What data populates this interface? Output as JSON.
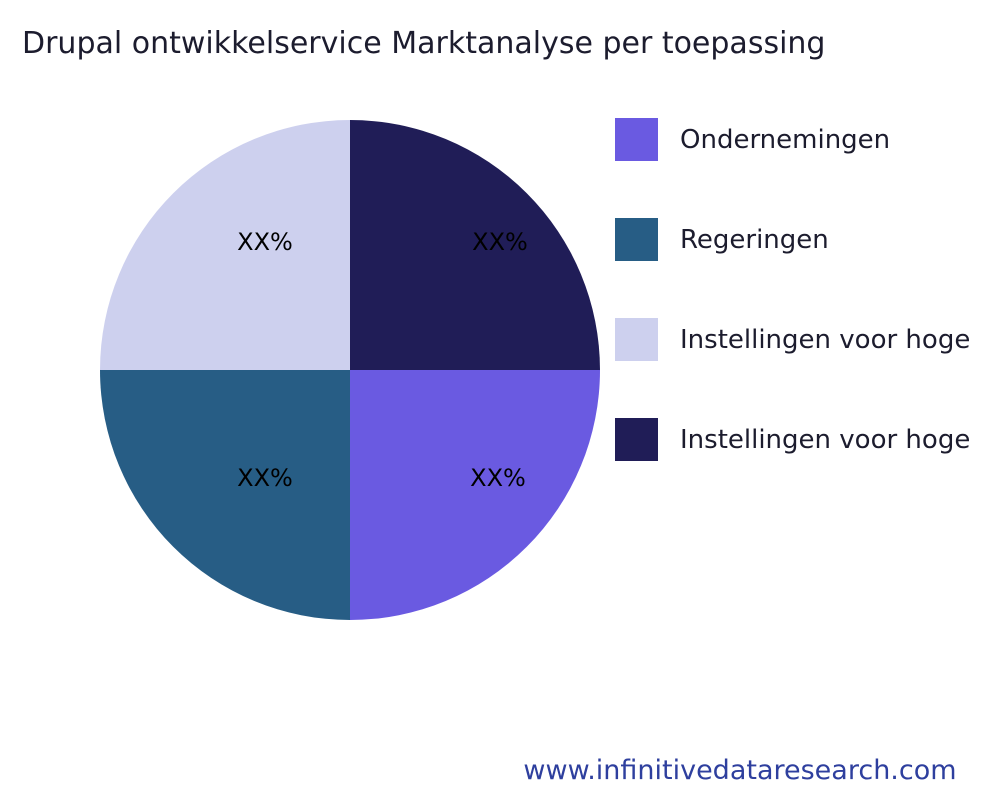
{
  "title": "Drupal ontwikkelservice Marktanalyse per toepassing",
  "footer": {
    "website": "www.infinitivedataresearch.com",
    "color": "#2e3f9e"
  },
  "chart_data": {
    "type": "pie",
    "title": "Drupal ontwikkelservice Marktanalyse per toepassing",
    "legend_position": "right",
    "labels_inside_slices": true,
    "slices": [
      {
        "label": "Ondernemingen",
        "value": 25,
        "value_label": "XX%",
        "color": "#6a5ae1"
      },
      {
        "label": "Regeringen",
        "value": 25,
        "value_label": "XX%",
        "color": "#275d85"
      },
      {
        "label": "Instellingen voor hoge",
        "value": 25,
        "value_label": "XX%",
        "color": "#cdd0ee"
      },
      {
        "label": "Instellingen voor hoge",
        "value": 25,
        "value_label": "XX%",
        "color": "#201d57"
      }
    ],
    "draw_order_clockwise_from_top": [
      3,
      0,
      1,
      2
    ],
    "slice_positions": {
      "top_right": "Instellingen voor hoge (navy)",
      "bottom_right": "Ondernemingen (purple)",
      "bottom_left": "Regeringen (steel blue)",
      "top_left": "Instellingen voor hoge (lavender)"
    }
  }
}
